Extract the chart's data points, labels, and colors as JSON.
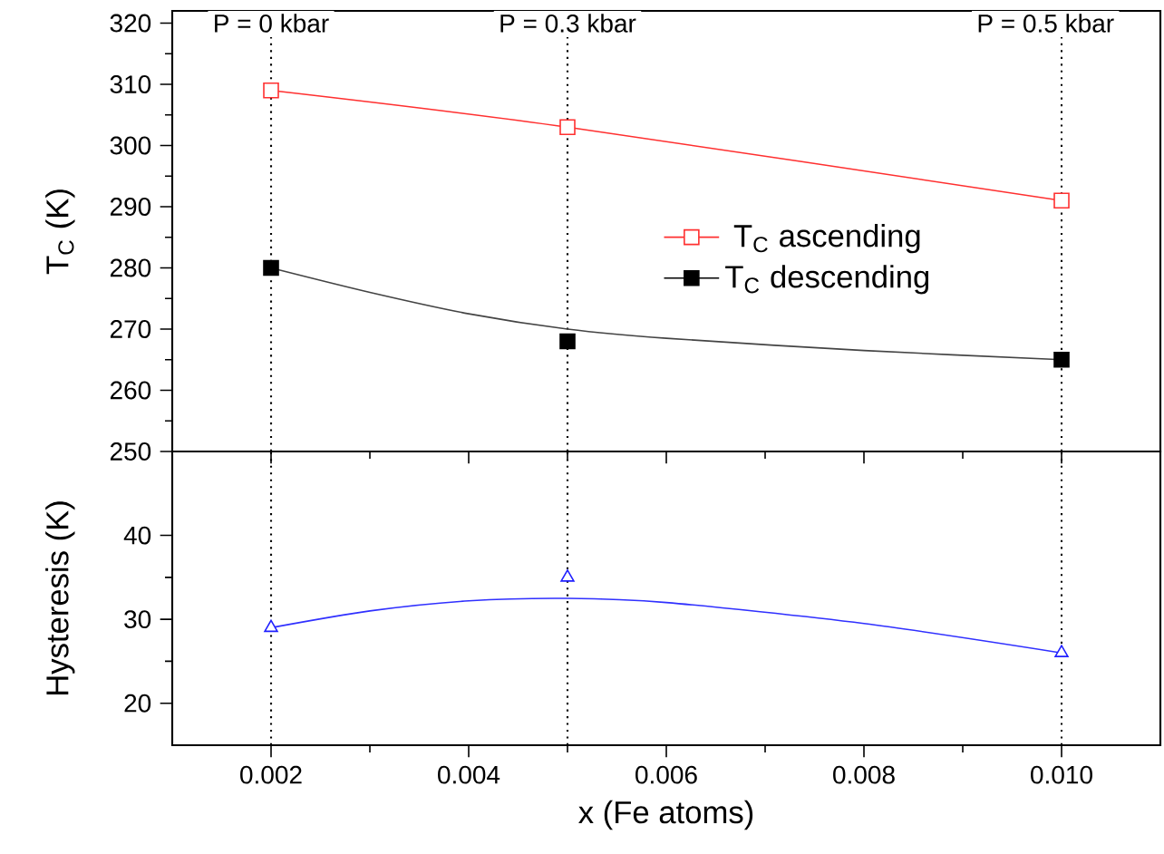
{
  "chart_data": [
    {
      "type": "scatter",
      "ylabel": "T$_{C}$ (K)",
      "xlim": [
        0.001,
        0.011
      ],
      "xticks": [
        0.002,
        0.004,
        0.006,
        0.008,
        0.01
      ],
      "ylim": [
        250,
        322
      ],
      "yticks": [
        250,
        260,
        270,
        280,
        290,
        300,
        310,
        320
      ],
      "tick_labels": "y",
      "legend": "right",
      "grid": false,
      "ref_lines": [
        {
          "axis": "x",
          "value": 0.002,
          "color": "#000000",
          "line_style": "dotted"
        },
        {
          "axis": "x",
          "value": 0.005,
          "color": "#000000",
          "line_style": "dotted"
        },
        {
          "axis": "x",
          "value": 0.01,
          "color": "#000000",
          "line_style": "dotted"
        }
      ],
      "annotations": [
        {
          "text": "P = 0 kbar",
          "x": 0.002,
          "y": 320
        },
        {
          "text": "P = 0.3 kbar",
          "x": 0.005,
          "y": 320
        },
        {
          "text": "P = 0.5 kbar",
          "x": 0.01,
          "y": 320
        }
      ],
      "series": [
        {
          "name": "T$_{C}$ ascending",
          "marker": "square",
          "color": "#ff3030",
          "x": [
            0.002,
            0.005,
            0.01
          ],
          "values": [
            309,
            303,
            291
          ]
        },
        {
          "name": "T$_{C}$ descending",
          "marker": "square",
          "color": "#000000",
          "x": [
            0.002,
            0.005,
            0.01
          ],
          "values": [
            280,
            268,
            265
          ]
        },
        {
          "type": "line",
          "marker": "none",
          "color": "#ff3030",
          "x": [
            0.002,
            0.005,
            0.01
          ],
          "values": [
            309,
            303,
            291
          ]
        },
        {
          "type": "line",
          "marker": "none",
          "color": "#444444",
          "x": [
            0.002,
            0.003,
            0.004,
            0.005,
            0.006,
            0.008,
            0.01
          ],
          "values": [
            280,
            276,
            272.5,
            270,
            268.5,
            266.5,
            265
          ]
        }
      ]
    },
    {
      "type": "scatter",
      "xlabel": "x (Fe atoms)",
      "ylabel": "Hysteresis (K)",
      "xlim": [
        0.001,
        0.011
      ],
      "xticks": [
        0.002,
        0.004,
        0.006,
        0.008,
        {
          "value": 0.01,
          "label": "0.010"
        }
      ],
      "ylim": [
        15,
        50
      ],
      "yticks": [
        20,
        30,
        40
      ],
      "grid": false,
      "ref_lines": [
        {
          "axis": "x",
          "value": 0.002,
          "color": "#000000",
          "line_style": "dotted"
        },
        {
          "axis": "x",
          "value": 0.005,
          "color": "#000000",
          "line_style": "dotted"
        },
        {
          "axis": "x",
          "value": 0.01,
          "color": "#000000",
          "line_style": "dotted"
        }
      ],
      "series": [
        {
          "marker": "triangle",
          "color": "#2020ff",
          "x": [
            0.002,
            0.005,
            0.01
          ],
          "values": [
            29,
            35,
            26
          ]
        },
        {
          "type": "line",
          "marker": "none",
          "color": "#3030ff",
          "x": [
            0.002,
            0.003,
            0.004,
            0.005,
            0.006,
            0.008,
            0.01
          ],
          "values": [
            29,
            31,
            32.2,
            32.5,
            32,
            29.5,
            26
          ]
        }
      ]
    }
  ]
}
